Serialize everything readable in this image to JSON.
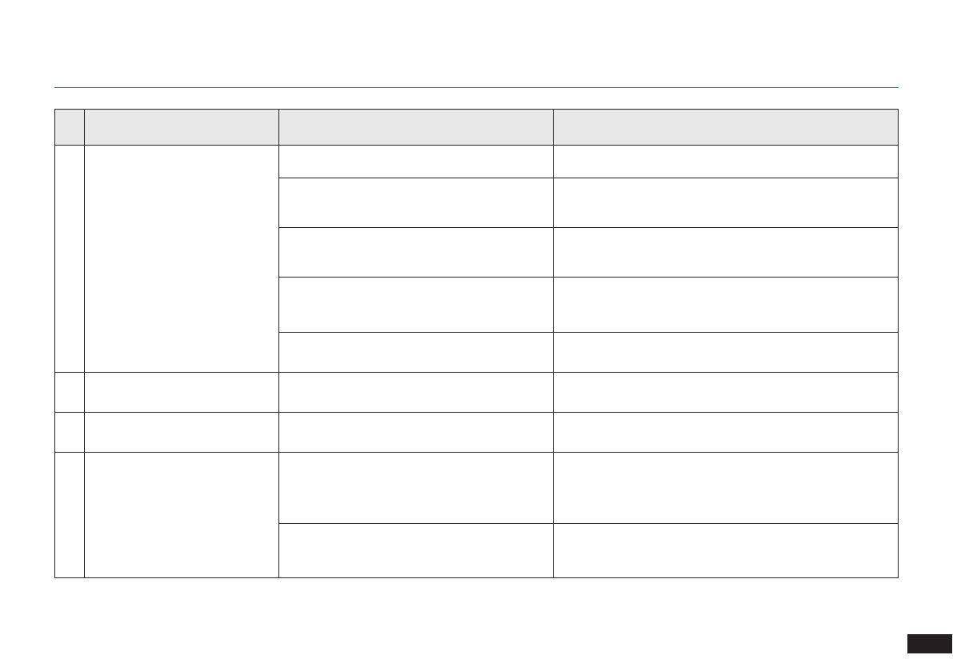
{
  "colors": {
    "rule": "#2a6fb5",
    "header_bg": "#e8e8e8",
    "border": "#222222",
    "page_tab": "#231f20"
  },
  "table": {
    "columns": 4,
    "header": [
      "",
      "",
      "",
      ""
    ],
    "rows": 9
  }
}
